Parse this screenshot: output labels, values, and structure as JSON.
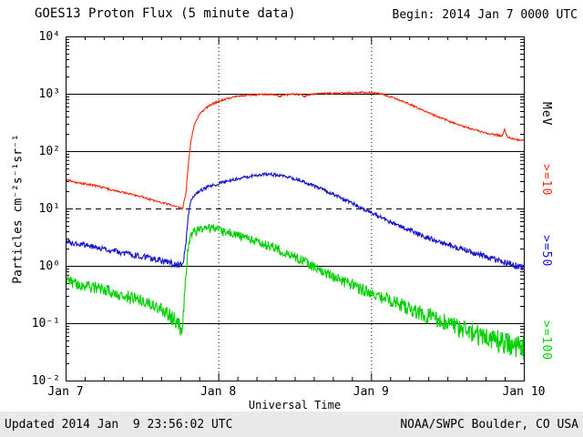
{
  "header": {
    "title": "GOES13 Proton Flux (5 minute data)",
    "begin_label": "Begin: 2014 Jan 7 0000 UTC"
  },
  "footer": {
    "updated": "Updated 2014 Jan  9 23:56:02 UTC",
    "source": "NOAA/SWPC Boulder, CO USA"
  },
  "chart_data": {
    "type": "line",
    "title": "GOES13 Proton Flux (5 minute data)",
    "xlabel": "Universal Time",
    "ylabel": "Particles cm⁻²s⁻¹sr⁻¹",
    "x_hours_range": [
      0,
      72
    ],
    "x_ticks": [
      {
        "hour": 0,
        "label": "Jan 7"
      },
      {
        "hour": 24,
        "label": "Jan 8"
      },
      {
        "hour": 48,
        "label": "Jan 9"
      },
      {
        "hour": 72,
        "label": "Jan 10"
      }
    ],
    "x_minor_tick_hours": 3,
    "ylim": [
      0.01,
      10000
    ],
    "y_ticks": [
      {
        "value": 10000,
        "label": "10⁴"
      },
      {
        "value": 1000,
        "label": "10³"
      },
      {
        "value": 100,
        "label": "10²"
      },
      {
        "value": 10,
        "label": "10¹"
      },
      {
        "value": 1,
        "label": "10⁰"
      },
      {
        "value": 0.1,
        "label": "10⁻¹"
      },
      {
        "value": 0.01,
        "label": "10⁻²"
      }
    ],
    "grid": {
      "solid_lines_at": [
        1000,
        100,
        1,
        0.1
      ],
      "dashed_line_at": 10,
      "vertical_dotted_at_hours": [
        24,
        48
      ]
    },
    "legend": {
      "units_label": "MeV",
      "entries": [
        {
          "label": ">=10",
          "color": "#fb2b0e"
        },
        {
          "label": ">=50",
          "color": "#1414c8"
        },
        {
          "label": ">=100",
          "color": "#00d000"
        }
      ]
    },
    "series": [
      {
        "name": ">=10 MeV",
        "color": "#fb2b0e",
        "noise_base": 0.015,
        "noise_stat": 0.01,
        "points": [
          [
            0,
            32
          ],
          [
            2,
            28
          ],
          [
            4,
            26
          ],
          [
            6,
            23
          ],
          [
            8,
            20
          ],
          [
            10,
            18
          ],
          [
            12,
            16
          ],
          [
            14,
            13.5
          ],
          [
            16,
            12
          ],
          [
            17.5,
            10.5
          ],
          [
            18.4,
            10
          ],
          [
            18.9,
            18
          ],
          [
            19.3,
            60
          ],
          [
            19.7,
            150
          ],
          [
            20.2,
            280
          ],
          [
            21,
            430
          ],
          [
            22,
            560
          ],
          [
            23,
            660
          ],
          [
            24,
            730
          ],
          [
            25,
            800
          ],
          [
            26,
            860
          ],
          [
            27,
            905
          ],
          [
            28,
            935
          ],
          [
            29,
            955
          ],
          [
            30,
            965
          ],
          [
            31,
            975
          ],
          [
            32,
            980
          ],
          [
            33,
            960
          ],
          [
            33.6,
            905
          ],
          [
            34.2,
            940
          ],
          [
            35,
            965
          ],
          [
            36,
            985
          ],
          [
            37,
            960
          ],
          [
            37.6,
            900
          ],
          [
            38.2,
            950
          ],
          [
            39,
            990
          ],
          [
            40,
            1005
          ],
          [
            42,
            1020
          ],
          [
            44,
            1030
          ],
          [
            46,
            1045
          ],
          [
            47,
            1055
          ],
          [
            48,
            1050
          ],
          [
            49,
            1020
          ],
          [
            50,
            970
          ],
          [
            51,
            890
          ],
          [
            52,
            815
          ],
          [
            53,
            735
          ],
          [
            54,
            660
          ],
          [
            55,
            590
          ],
          [
            56,
            525
          ],
          [
            57,
            470
          ],
          [
            58,
            420
          ],
          [
            59,
            378
          ],
          [
            60,
            340
          ],
          [
            61,
            310
          ],
          [
            62,
            283
          ],
          [
            63,
            260
          ],
          [
            64,
            240
          ],
          [
            65,
            222
          ],
          [
            66,
            208
          ],
          [
            67,
            197
          ],
          [
            68,
            188
          ],
          [
            68.6,
            182
          ],
          [
            69,
            235
          ],
          [
            69.4,
            178
          ],
          [
            70,
            168
          ],
          [
            71,
            158
          ],
          [
            72,
            152
          ]
        ]
      },
      {
        "name": ">=50 MeV",
        "color": "#1414c8",
        "noise_base": 0.02,
        "noise_stat": 0.04,
        "points": [
          [
            0,
            2.6
          ],
          [
            2,
            2.4
          ],
          [
            4,
            2.2
          ],
          [
            6,
            2.0
          ],
          [
            8,
            1.8
          ],
          [
            10,
            1.6
          ],
          [
            12,
            1.45
          ],
          [
            14,
            1.3
          ],
          [
            16,
            1.15
          ],
          [
            17.5,
            1.05
          ],
          [
            18.4,
            1.0
          ],
          [
            18.9,
            2.5
          ],
          [
            19.3,
            8
          ],
          [
            19.7,
            13
          ],
          [
            20.2,
            17
          ],
          [
            21,
            20
          ],
          [
            22,
            23
          ],
          [
            23,
            25
          ],
          [
            24,
            27
          ],
          [
            25,
            29
          ],
          [
            26,
            31
          ],
          [
            27,
            33
          ],
          [
            28,
            35
          ],
          [
            29,
            36.5
          ],
          [
            30,
            38
          ],
          [
            31,
            39
          ],
          [
            32,
            39.5
          ],
          [
            33,
            38.5
          ],
          [
            34,
            37
          ],
          [
            35,
            35
          ],
          [
            36,
            33
          ],
          [
            38,
            27.5
          ],
          [
            40,
            22.5
          ],
          [
            42,
            18
          ],
          [
            44,
            14
          ],
          [
            46,
            11
          ],
          [
            48,
            8.5
          ],
          [
            50,
            6.6
          ],
          [
            52,
            5.2
          ],
          [
            54,
            4.2
          ],
          [
            56,
            3.4
          ],
          [
            58,
            2.8
          ],
          [
            60,
            2.35
          ],
          [
            62,
            2.0
          ],
          [
            64,
            1.7
          ],
          [
            66,
            1.45
          ],
          [
            68,
            1.25
          ],
          [
            70,
            1.05
          ],
          [
            72,
            0.92
          ]
        ]
      },
      {
        "name": ">=100 MeV",
        "color": "#00d000",
        "noise_base": 0.06,
        "noise_stat": 0.03,
        "points": [
          [
            0,
            0.55
          ],
          [
            2,
            0.48
          ],
          [
            4,
            0.43
          ],
          [
            6,
            0.38
          ],
          [
            8,
            0.33
          ],
          [
            10,
            0.28
          ],
          [
            12,
            0.24
          ],
          [
            14,
            0.2
          ],
          [
            15,
            0.17
          ],
          [
            16,
            0.15
          ],
          [
            17,
            0.12
          ],
          [
            17.8,
            0.09
          ],
          [
            18.4,
            0.08
          ],
          [
            18.8,
            0.5
          ],
          [
            19.2,
            1.8
          ],
          [
            19.6,
            3.0
          ],
          [
            20,
            3.6
          ],
          [
            21,
            4.3
          ],
          [
            22,
            4.5
          ],
          [
            23,
            4.4
          ],
          [
            24,
            4.2
          ],
          [
            25,
            3.95
          ],
          [
            26,
            3.7
          ],
          [
            27,
            3.4
          ],
          [
            28,
            3.1
          ],
          [
            29,
            2.85
          ],
          [
            30,
            2.6
          ],
          [
            31,
            2.4
          ],
          [
            32,
            2.2
          ],
          [
            33,
            2.0
          ],
          [
            34,
            1.8
          ],
          [
            35,
            1.6
          ],
          [
            36,
            1.42
          ],
          [
            37,
            1.26
          ],
          [
            38,
            1.1
          ],
          [
            39,
            0.97
          ],
          [
            40,
            0.86
          ],
          [
            42,
            0.66
          ],
          [
            44,
            0.52
          ],
          [
            46,
            0.41
          ],
          [
            48,
            0.33
          ],
          [
            50,
            0.27
          ],
          [
            52,
            0.22
          ],
          [
            54,
            0.18
          ],
          [
            56,
            0.15
          ],
          [
            58,
            0.12
          ],
          [
            60,
            0.1
          ],
          [
            62,
            0.082
          ],
          [
            64,
            0.068
          ],
          [
            66,
            0.057
          ],
          [
            68,
            0.048
          ],
          [
            70,
            0.042
          ],
          [
            72,
            0.037
          ]
        ]
      }
    ]
  }
}
